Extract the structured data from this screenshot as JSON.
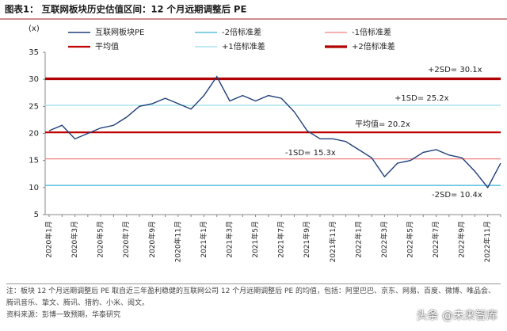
{
  "chart_data": {
    "type": "line",
    "title": "图表1：  互联网板块历史估值区间：12 个月远期调整后 PE",
    "y_unit": "(x)",
    "categories": [
      "2020年1月",
      null,
      "2020年3月",
      null,
      "2020年5月",
      null,
      "2020年7月",
      null,
      "2020年9月",
      null,
      "2020年11月",
      null,
      "2021年1月",
      null,
      "2021年3月",
      null,
      "2021年5月",
      null,
      "2021年7月",
      null,
      "2021年9月",
      null,
      "2021年11月",
      null,
      "2022年1月",
      null,
      "2022年3月",
      null,
      "2022年5月",
      null,
      "2022年7月",
      null,
      "2022年9月",
      null,
      "2022年11月",
      null
    ],
    "series": [
      {
        "name": "互联网板块PE",
        "color": "#1f3f7a",
        "values": [
          20.5,
          21.5,
          19,
          20,
          21,
          21.5,
          23,
          25,
          25.5,
          26.5,
          25.5,
          24.5,
          27,
          30.5,
          26,
          27,
          26,
          27,
          26.5,
          24,
          20.5,
          19,
          19,
          18.5,
          17,
          15.5,
          12,
          14.5,
          15,
          16.5,
          17,
          16,
          15.5,
          13,
          10,
          14.5
        ]
      }
    ],
    "reference_lines": [
      {
        "name": "-2倍标准差",
        "value": 10.4,
        "color": "#3bb3d8",
        "label": "-2SD= 10.4x"
      },
      {
        "name": "-1倍标准差",
        "value": 15.3,
        "color": "#f08080",
        "label": "-1SD= 15.3x"
      },
      {
        "name": "平均值",
        "value": 20.2,
        "color": "#c00000",
        "label": "平均值= 20.2x"
      },
      {
        "name": "+1倍标准差",
        "value": 25.2,
        "color": "#a8e4ef",
        "label": "+1SD= 25.2x"
      },
      {
        "name": "+2倍标准差",
        "value": 30.1,
        "color": "#b00000",
        "label": "+2SD= 30.1x"
      }
    ],
    "ylim": [
      5,
      35
    ],
    "yticks": [
      5,
      10,
      15,
      20,
      25,
      30,
      35
    ],
    "notes": "注：板块 12 个月远期调整后 PE 取自近三年盈利稳健的互联网公司 12 个月远期调整后 PE 的均值，包括：阿里巴巴、京东、网易、百度、微博、唯品会、腾讯音乐、挚文、腾讯、猎豹、小米、阅文。",
    "source": "资料来源：彭博一致预期，华泰研究",
    "watermark": "头条 @未来智库"
  }
}
